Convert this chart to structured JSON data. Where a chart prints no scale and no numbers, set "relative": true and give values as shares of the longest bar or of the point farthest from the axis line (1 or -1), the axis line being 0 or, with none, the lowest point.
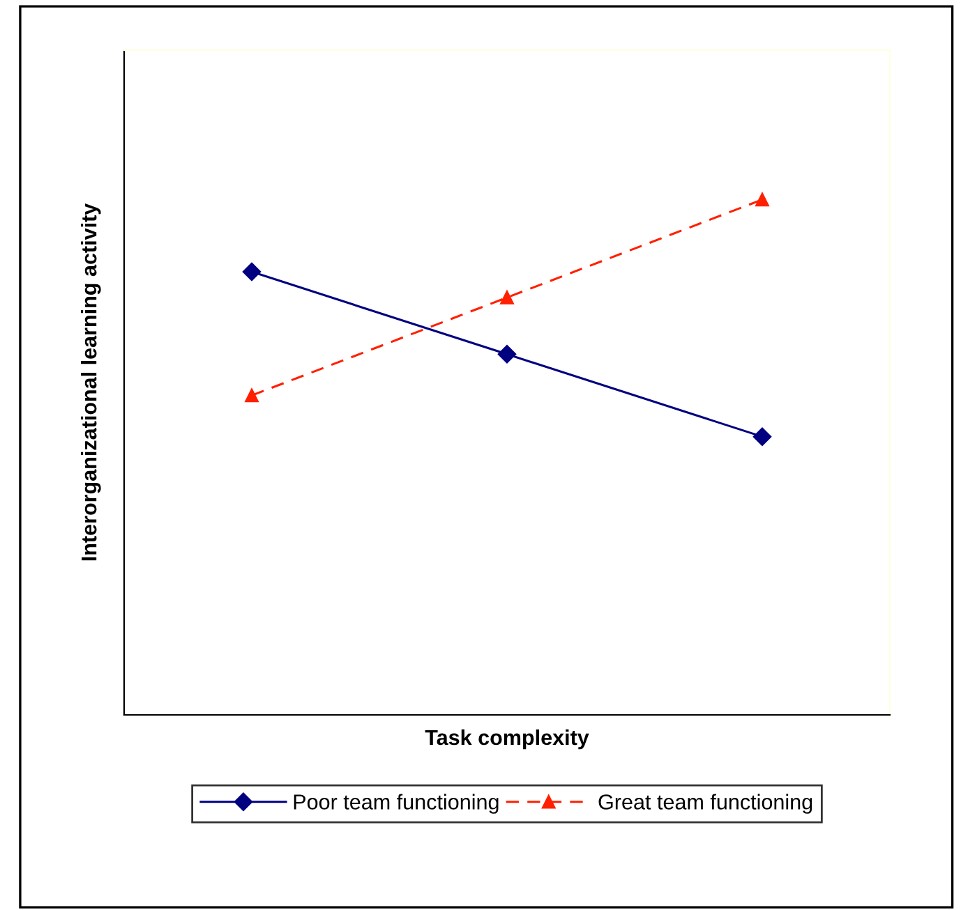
{
  "chart_data": {
    "type": "line",
    "xlabel": "Task complexity",
    "ylabel": "Interorganizational learning activity",
    "categories": [
      null,
      null,
      null
    ],
    "relative": true,
    "legend": "bottom",
    "grid": false,
    "series": [
      {
        "name": "Poor team functioning",
        "color": "#000080",
        "values": [
          0.86,
          0.7,
          0.54
        ],
        "marker": "diamond",
        "line_style": "solid"
      },
      {
        "name": "Great team functioning",
        "color": "#ff2000",
        "values": [
          0.62,
          0.81,
          1.0
        ],
        "marker": "triangle",
        "line_style": "dashed"
      }
    ]
  }
}
